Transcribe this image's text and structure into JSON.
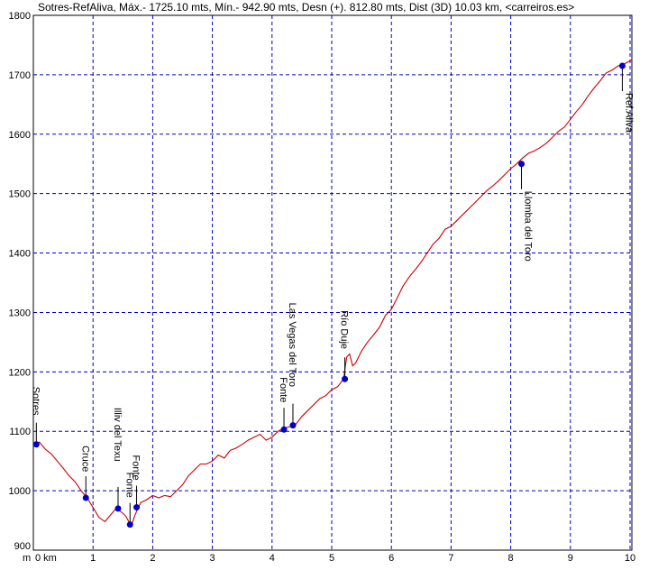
{
  "header": {
    "title": "Sotres-RefAliva, Máx.- 1725.10 mts, Mín.- 942.90 mts, Desn (+). 812.80 mts, Dist (3D) 10.03 km, <carreiros.es>"
  },
  "chart_data": {
    "type": "line",
    "title": "Sotres-RefAliva, Máx.- 1725.10 mts, Mín.- 942.90 mts, Desn (+). 812.80 mts, Dist (3D) 10.03 km, <carreiros.es>",
    "xlabel": "",
    "ylabel": "",
    "x_unit_labels": {
      "y_first": "m",
      "x_first": "0 km"
    },
    "xlim": [
      0,
      10.03
    ],
    "ylim": [
      900,
      1800
    ],
    "x_ticks": [
      0,
      1,
      2,
      3,
      4,
      5,
      6,
      7,
      8,
      9,
      10
    ],
    "y_ticks": [
      900,
      1000,
      1100,
      1200,
      1300,
      1400,
      1500,
      1600,
      1700,
      1800
    ],
    "grid": true,
    "line_color": "#cc0000",
    "marker_color": "#0000cc",
    "grid_color": "#0000cc",
    "series": [
      {
        "x": [
          0.0,
          0.1,
          0.2,
          0.3,
          0.4,
          0.5,
          0.6,
          0.7,
          0.8,
          0.9,
          1.0,
          1.1,
          1.2,
          1.3,
          1.4,
          1.45,
          1.5,
          1.55,
          1.6,
          1.65,
          1.7,
          1.75,
          1.8,
          1.9,
          2.0,
          2.1,
          2.2,
          2.3,
          2.4,
          2.5,
          2.6,
          2.7,
          2.8,
          2.9,
          3.0,
          3.1,
          3.2,
          3.3,
          3.4,
          3.5,
          3.6,
          3.7,
          3.8,
          3.9,
          4.0,
          4.1,
          4.2,
          4.3,
          4.4,
          4.5,
          4.6,
          4.7,
          4.8,
          4.9,
          5.0,
          5.1,
          5.2,
          5.25,
          5.3,
          5.35,
          5.4,
          5.5,
          5.6,
          5.7,
          5.8,
          5.9,
          6.0,
          6.1,
          6.2,
          6.3,
          6.4,
          6.5,
          6.6,
          6.7,
          6.8,
          6.9,
          7.0,
          7.1,
          7.2,
          7.3,
          7.4,
          7.5,
          7.6,
          7.7,
          7.8,
          7.9,
          8.0,
          8.1,
          8.2,
          8.3,
          8.4,
          8.5,
          8.6,
          8.7,
          8.8,
          8.9,
          9.0,
          9.1,
          9.2,
          9.3,
          9.4,
          9.5,
          9.6,
          9.7,
          9.8,
          9.9,
          10.03
        ],
        "values": [
          1078,
          1082,
          1070,
          1062,
          1050,
          1038,
          1025,
          1015,
          1000,
          988,
          972,
          955,
          948,
          960,
          972,
          966,
          962,
          957,
          948,
          943,
          958,
          970,
          980,
          985,
          992,
          988,
          992,
          990,
          1000,
          1010,
          1025,
          1035,
          1045,
          1045,
          1050,
          1060,
          1055,
          1068,
          1072,
          1078,
          1085,
          1090,
          1095,
          1085,
          1090,
          1100,
          1105,
          1108,
          1112,
          1125,
          1135,
          1145,
          1155,
          1160,
          1170,
          1175,
          1188,
          1225,
          1230,
          1210,
          1215,
          1235,
          1250,
          1262,
          1275,
          1295,
          1305,
          1325,
          1345,
          1360,
          1372,
          1385,
          1400,
          1415,
          1425,
          1440,
          1445,
          1455,
          1465,
          1475,
          1485,
          1495,
          1505,
          1513,
          1522,
          1532,
          1542,
          1550,
          1560,
          1568,
          1572,
          1578,
          1585,
          1595,
          1605,
          1612,
          1625,
          1638,
          1650,
          1665,
          1678,
          1690,
          1703,
          1708,
          1715,
          1718,
          1725
        ]
      }
    ],
    "waypoints": [
      {
        "name": "Sotres",
        "x": 0.05,
        "y": 1078
      },
      {
        "name": "Cruce",
        "x": 0.88,
        "y": 988
      },
      {
        "name": "Illiv del Texu",
        "x": 1.42,
        "y": 970
      },
      {
        "name": "Fonte",
        "x": 1.62,
        "y": 943
      },
      {
        "name": "Fonte",
        "x": 1.73,
        "y": 972
      },
      {
        "name": "Fonte",
        "x": 4.2,
        "y": 1103
      },
      {
        "name": "Las Vegas del Toro",
        "x": 4.35,
        "y": 1110
      },
      {
        "name": "Río Duje",
        "x": 5.22,
        "y": 1188
      },
      {
        "name": "Llomba del Toro",
        "x": 8.18,
        "y": 1550
      },
      {
        "name": "Ref.Aliva",
        "x": 9.87,
        "y": 1715
      }
    ]
  }
}
